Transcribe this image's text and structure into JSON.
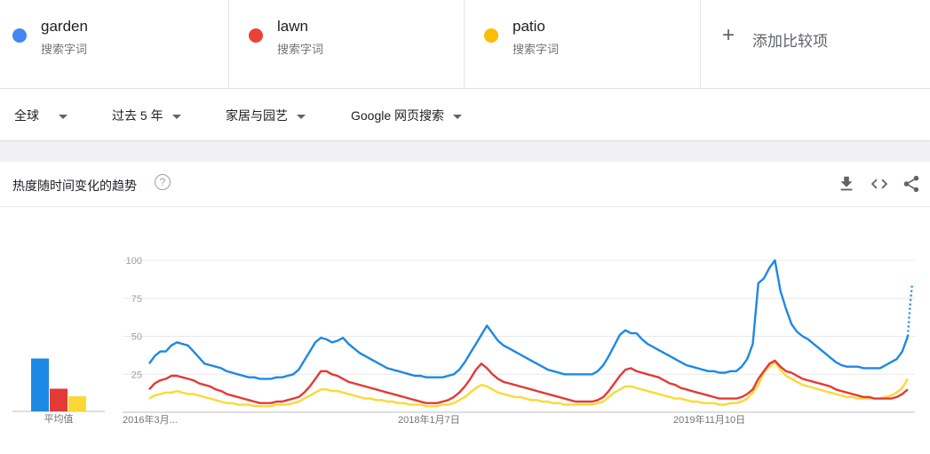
{
  "terms": [
    {
      "name": "garden",
      "type": "搜索字词",
      "color": "#4285f4"
    },
    {
      "name": "lawn",
      "type": "搜索字词",
      "color": "#ea4335"
    },
    {
      "name": "patio",
      "type": "搜索字词",
      "color": "#fbbc04"
    }
  ],
  "add_compare": "添加比较项",
  "filters": {
    "region": "全球",
    "time": "过去 5 年",
    "category": "家居与园艺",
    "property": "Google 网页搜索"
  },
  "card": {
    "title": "热度随时间变化的趋势",
    "help_glyph": "?"
  },
  "toolbar_icons": [
    "download-icon",
    "embed-code-icon",
    "share-icon"
  ],
  "chart_data": {
    "type": "line",
    "title": "",
    "yticks": [
      "100",
      "75",
      "50",
      "25"
    ],
    "ylim": [
      0,
      100
    ],
    "xtick_labels": [
      "2016年3月...",
      "2018年1月7日",
      "2019年11月10日"
    ],
    "average_label": "平均值",
    "averages": [
      {
        "name": "garden",
        "value": 35,
        "color": "#1e88e5"
      },
      {
        "name": "lawn",
        "value": 15,
        "color": "#e53935"
      },
      {
        "name": "patio",
        "value": 10,
        "color": "#fdd835"
      }
    ],
    "series": [
      {
        "name": "garden",
        "color": "#1e88e5",
        "values": [
          32,
          37,
          40,
          40,
          44,
          46,
          45,
          44,
          40,
          36,
          32,
          31,
          30,
          29,
          27,
          26,
          25,
          24,
          23,
          23,
          22,
          22,
          22,
          23,
          23,
          24,
          25,
          28,
          34,
          40,
          46,
          49,
          48,
          46,
          47,
          49,
          45,
          42,
          39,
          37,
          35,
          33,
          31,
          29,
          28,
          27,
          26,
          25,
          24,
          24,
          23,
          23,
          23,
          23,
          24,
          25,
          28,
          33,
          39,
          45,
          51,
          57,
          52,
          47,
          44,
          42,
          40,
          38,
          36,
          34,
          32,
          30,
          28,
          27,
          26,
          25,
          25,
          25,
          25,
          25,
          25,
          27,
          31,
          37,
          44,
          51,
          54,
          52,
          52,
          48,
          45,
          43,
          41,
          39,
          37,
          35,
          33,
          31,
          30,
          29,
          28,
          27,
          27,
          26,
          26,
          27,
          27,
          30,
          35,
          45,
          85,
          88,
          95,
          100,
          80,
          68,
          58,
          53,
          50,
          48,
          45,
          42,
          39,
          36,
          33,
          31,
          30,
          30,
          30,
          29,
          29,
          29,
          29,
          31,
          33,
          35,
          40,
          50
        ],
        "forecast": [
          50,
          70,
          85
        ]
      },
      {
        "name": "lawn",
        "color": "#e53935",
        "values": [
          15,
          19,
          21,
          22,
          24,
          24,
          23,
          22,
          21,
          19,
          18,
          17,
          15,
          14,
          12,
          11,
          10,
          9,
          8,
          7,
          6,
          6,
          6,
          7,
          7,
          8,
          9,
          10,
          13,
          17,
          22,
          27,
          27,
          25,
          24,
          22,
          20,
          19,
          18,
          17,
          16,
          15,
          14,
          13,
          12,
          11,
          10,
          9,
          8,
          7,
          6,
          6,
          6,
          7,
          8,
          10,
          13,
          17,
          22,
          28,
          32,
          29,
          25,
          22,
          20,
          19,
          18,
          17,
          16,
          15,
          14,
          13,
          12,
          11,
          10,
          9,
          8,
          7,
          7,
          7,
          7,
          8,
          10,
          14,
          19,
          24,
          28,
          29,
          27,
          26,
          25,
          24,
          23,
          21,
          19,
          18,
          16,
          15,
          14,
          13,
          12,
          11,
          10,
          9,
          9,
          9,
          9,
          10,
          12,
          15,
          22,
          27,
          32,
          34,
          30,
          27,
          26,
          24,
          22,
          21,
          20,
          19,
          18,
          17,
          15,
          14,
          13,
          12,
          11,
          10,
          10,
          9,
          9,
          9,
          9,
          10,
          12,
          15
        ]
      },
      {
        "name": "patio",
        "color": "#fdd835",
        "values": [
          9,
          11,
          12,
          13,
          13,
          14,
          13,
          12,
          12,
          11,
          10,
          9,
          8,
          7,
          6,
          6,
          5,
          5,
          5,
          4,
          4,
          4,
          4,
          5,
          5,
          5,
          6,
          7,
          9,
          11,
          13,
          15,
          15,
          14,
          14,
          13,
          12,
          11,
          10,
          9,
          9,
          8,
          8,
          7,
          7,
          6,
          6,
          5,
          5,
          5,
          4,
          4,
          4,
          5,
          5,
          6,
          8,
          10,
          13,
          16,
          18,
          17,
          15,
          13,
          12,
          11,
          10,
          10,
          9,
          8,
          8,
          7,
          7,
          6,
          6,
          5,
          5,
          5,
          5,
          5,
          5,
          6,
          7,
          10,
          13,
          15,
          17,
          17,
          16,
          15,
          14,
          13,
          12,
          11,
          10,
          9,
          9,
          8,
          7,
          7,
          6,
          6,
          6,
          5,
          5,
          6,
          6,
          7,
          9,
          13,
          18,
          26,
          30,
          33,
          28,
          24,
          22,
          20,
          18,
          17,
          16,
          15,
          14,
          13,
          12,
          11,
          10,
          10,
          9,
          9,
          9,
          9,
          9,
          10,
          11,
          13,
          16,
          22
        ]
      }
    ]
  }
}
